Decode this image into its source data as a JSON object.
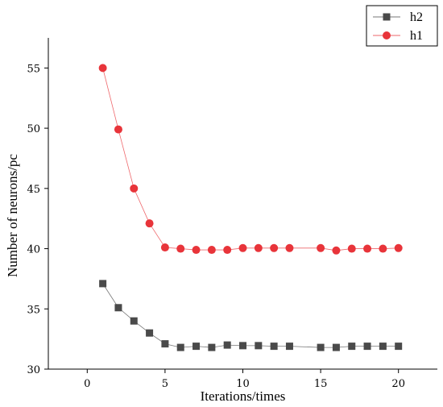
{
  "chart_data": {
    "type": "line",
    "xlabel": "Iterations/times",
    "ylabel": "Number of neurons/pc",
    "xlim": [
      -2.5,
      22.5
    ],
    "ylim": [
      30,
      57.5
    ],
    "xticks": [
      0,
      5,
      10,
      15,
      20
    ],
    "yticks": [
      30,
      35,
      40,
      45,
      50,
      55
    ],
    "grid": false,
    "legend_position": "top-right",
    "series": [
      {
        "name": "h2",
        "marker": "square",
        "color": "#4a4a4a",
        "x": [
          1,
          2,
          3,
          4,
          5,
          6,
          7,
          8,
          9,
          10,
          11,
          12,
          13,
          15,
          16,
          17,
          18,
          19,
          20
        ],
        "y": [
          37.1,
          35.1,
          34.0,
          33.0,
          32.1,
          31.8,
          31.9,
          31.8,
          32.0,
          31.95,
          31.95,
          31.9,
          31.9,
          31.8,
          31.8,
          31.9,
          31.9,
          31.9,
          31.9
        ]
      },
      {
        "name": "h1",
        "marker": "circle",
        "color": "#e8343a",
        "x": [
          1,
          2,
          3,
          4,
          5,
          6,
          7,
          8,
          9,
          10,
          11,
          12,
          13,
          15,
          16,
          17,
          18,
          19,
          20
        ],
        "y": [
          55.0,
          49.9,
          45.0,
          42.1,
          40.1,
          40.0,
          39.9,
          39.9,
          39.9,
          40.05,
          40.05,
          40.05,
          40.05,
          40.05,
          39.85,
          40.0,
          40.0,
          40.0,
          40.05
        ]
      }
    ]
  }
}
